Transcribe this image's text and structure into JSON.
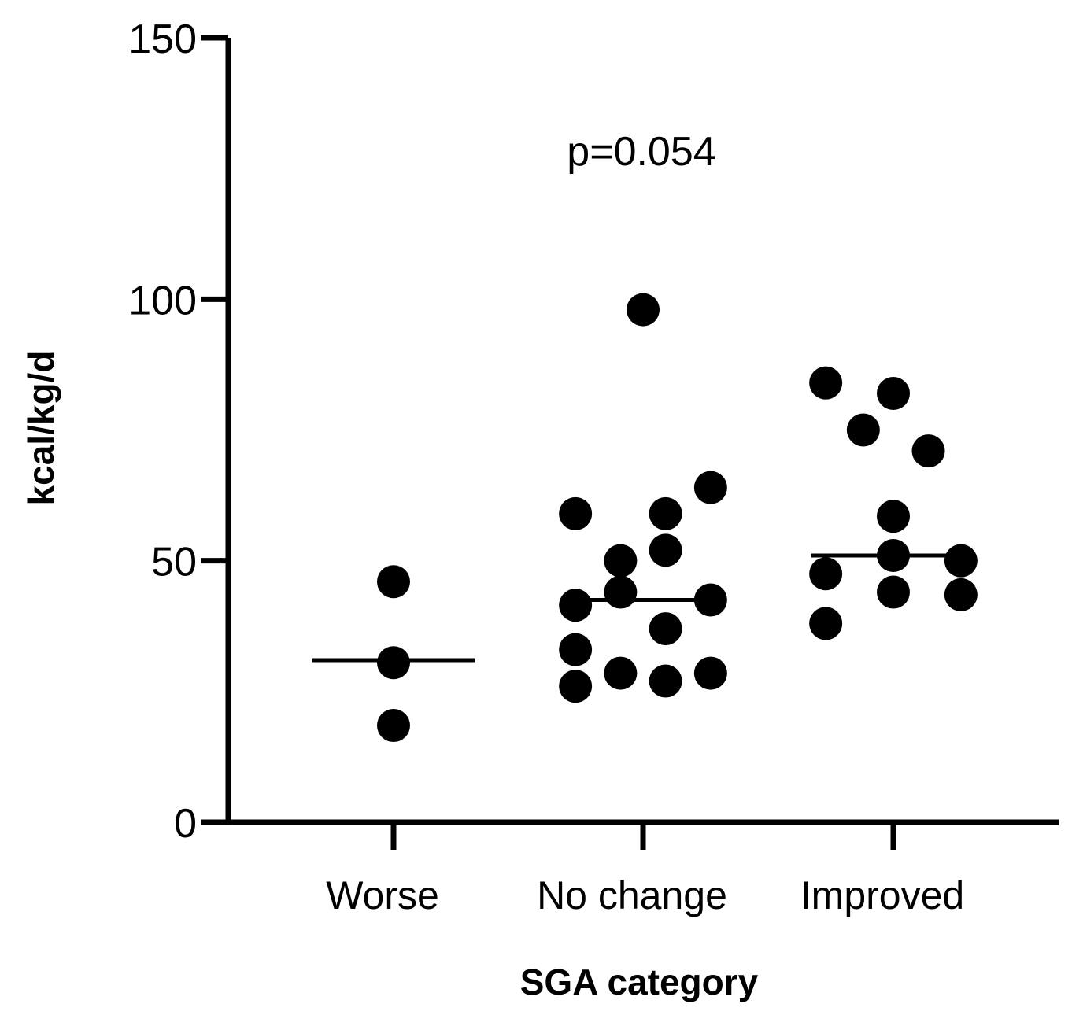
{
  "chart_data": {
    "type": "scatter",
    "title": "",
    "xlabel": "SGA category",
    "ylabel": "kcal/kg/d",
    "ylim": [
      0,
      150
    ],
    "yticks": [
      0,
      50,
      100,
      150
    ],
    "categories": [
      "Worse",
      "No change",
      "Improved"
    ],
    "annotation": "p=0.054",
    "groups": [
      {
        "name": "Worse",
        "median": 31,
        "points": [
          {
            "offset": 0,
            "value": 46
          },
          {
            "offset": 0,
            "value": 30.5
          },
          {
            "offset": 0,
            "value": 18.5
          }
        ]
      },
      {
        "name": "No change",
        "median": 42.5,
        "points": [
          {
            "offset": 0,
            "value": 98
          },
          {
            "offset": 0.27,
            "value": 64
          },
          {
            "offset": -0.27,
            "value": 59
          },
          {
            "offset": 0.09,
            "value": 59
          },
          {
            "offset": 0.09,
            "value": 52
          },
          {
            "offset": -0.09,
            "value": 50
          },
          {
            "offset": -0.09,
            "value": 44
          },
          {
            "offset": 0.27,
            "value": 42.5
          },
          {
            "offset": -0.27,
            "value": 41.5
          },
          {
            "offset": 0.09,
            "value": 37
          },
          {
            "offset": -0.27,
            "value": 33
          },
          {
            "offset": -0.09,
            "value": 28.5
          },
          {
            "offset": 0.27,
            "value": 28.5
          },
          {
            "offset": 0.09,
            "value": 27
          },
          {
            "offset": -0.27,
            "value": 26
          }
        ]
      },
      {
        "name": "Improved",
        "median": 51,
        "points": [
          {
            "offset": -0.27,
            "value": 84
          },
          {
            "offset": 0,
            "value": 82
          },
          {
            "offset": -0.12,
            "value": 75
          },
          {
            "offset": 0.14,
            "value": 71
          },
          {
            "offset": 0,
            "value": 58.5
          },
          {
            "offset": 0,
            "value": 51
          },
          {
            "offset": 0.27,
            "value": 50
          },
          {
            "offset": -0.27,
            "value": 47.5
          },
          {
            "offset": 0,
            "value": 44
          },
          {
            "offset": 0.27,
            "value": 43.5
          },
          {
            "offset": -0.27,
            "value": 38
          }
        ]
      }
    ]
  }
}
